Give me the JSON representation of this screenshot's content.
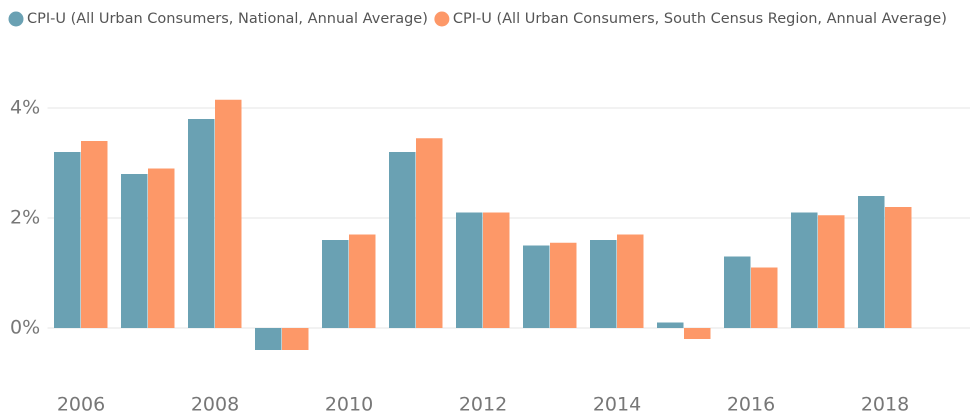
{
  "chart_data": {
    "type": "bar",
    "categories": [
      "2006",
      null,
      "2008",
      null,
      "2010",
      null,
      "2012",
      null,
      "2014",
      null,
      "2016",
      null,
      "2018"
    ],
    "series": [
      {
        "name": "CPI-U (All Urban Consumers, National, Annual Average)",
        "color": "#6aa1b3",
        "values": [
          3.2,
          2.8,
          3.8,
          -0.4,
          1.6,
          3.2,
          2.1,
          1.5,
          1.6,
          0.1,
          1.3,
          2.1,
          2.4
        ]
      },
      {
        "name": "CPI-U (All Urban Consumers, South Census Region, Annual Average)",
        "color": "#fd9868",
        "values": [
          3.4,
          2.9,
          4.15,
          -0.4,
          1.7,
          3.45,
          2.1,
          1.55,
          1.7,
          -0.2,
          1.1,
          2.05,
          2.2
        ]
      }
    ],
    "ylim": [
      -1,
      4.5
    ],
    "yticks": [
      {
        "value": 0,
        "label": "0%"
      },
      {
        "value": 2,
        "label": "2%"
      },
      {
        "value": 4,
        "label": "4%"
      }
    ],
    "grid": true,
    "legend": "top"
  }
}
